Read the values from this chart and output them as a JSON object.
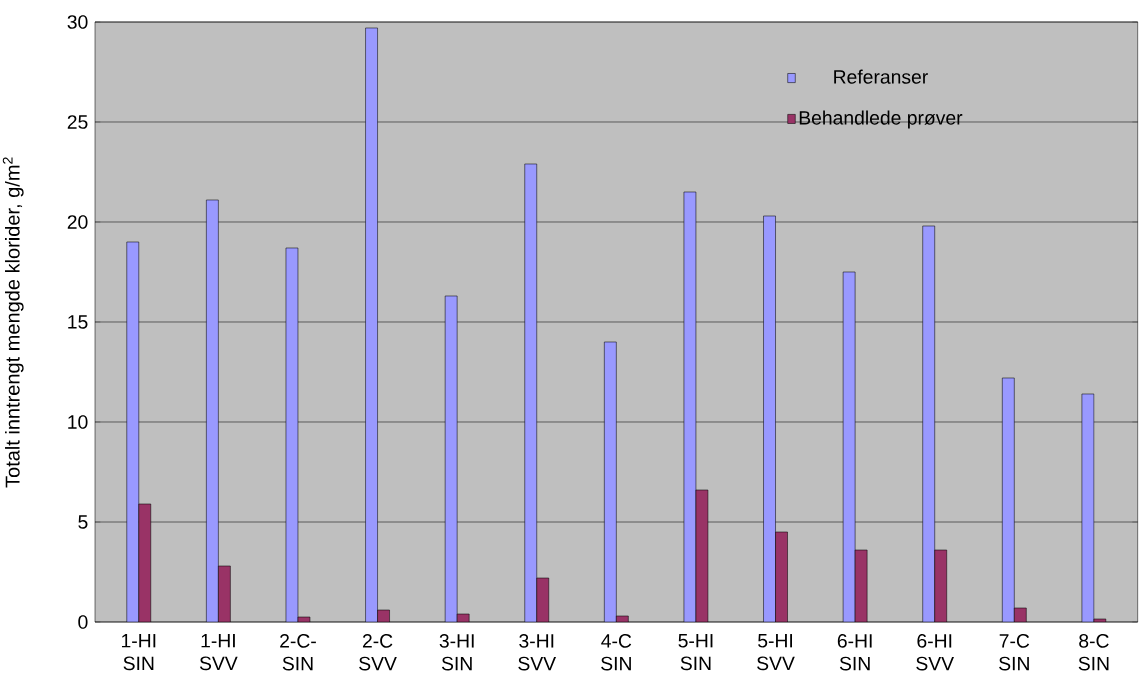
{
  "chart_data": {
    "type": "bar",
    "ylabel": "Totalt inntrengt mengde klorider, g/m$^{2}$",
    "categories": [
      "1-HI SIN",
      "1-HI SVV",
      "2-C- SIN",
      "2-C SVV",
      "3-HI SIN",
      "3-HI SVV",
      "4-C SIN",
      "5-HI SIN",
      "5-HI SVV",
      "6-HI SIN",
      "6-HI SVV",
      "7-C SIN",
      "8-C SIN"
    ],
    "series": [
      {
        "name": "Referanser",
        "color": "#9999ff",
        "values": [
          19.0,
          21.1,
          18.7,
          29.7,
          16.3,
          22.9,
          14.0,
          21.5,
          20.3,
          17.5,
          19.8,
          12.2,
          11.4
        ]
      },
      {
        "name": "Behandlede prøver",
        "color": "#993366",
        "values": [
          5.9,
          2.8,
          0.25,
          0.6,
          0.4,
          2.2,
          0.3,
          6.6,
          4.5,
          3.6,
          3.6,
          0.7,
          0.15
        ]
      }
    ],
    "ylim": [
      0,
      30
    ],
    "yticks": [
      0,
      5,
      10,
      15,
      20,
      25,
      30
    ],
    "grid": "y",
    "legend": "top right"
  }
}
